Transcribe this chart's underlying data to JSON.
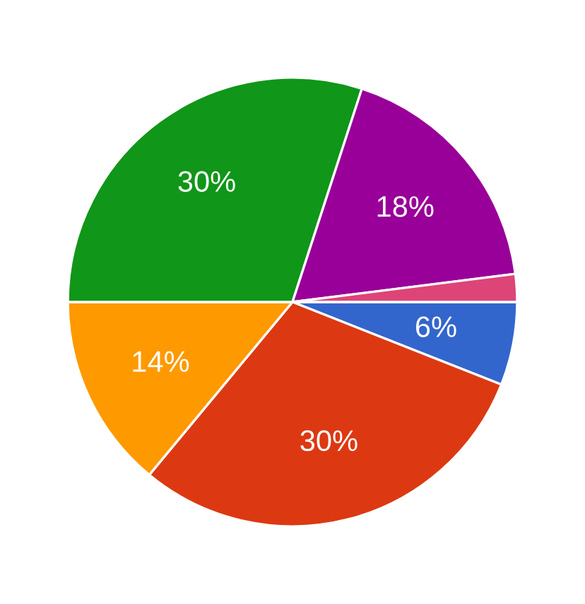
{
  "chart_data": {
    "type": "pie",
    "categories": [
      null,
      null,
      null,
      null,
      null,
      null
    ],
    "values": [
      6,
      30,
      14,
      30,
      18,
      2
    ],
    "colors": [
      "#3366cc",
      "#dc3912",
      "#ff9900",
      "#109618",
      "#990099",
      "#dd4477"
    ],
    "value_labels": [
      "6%",
      "30%",
      "14%",
      "30%",
      "18%",
      null
    ],
    "legend": false
  }
}
